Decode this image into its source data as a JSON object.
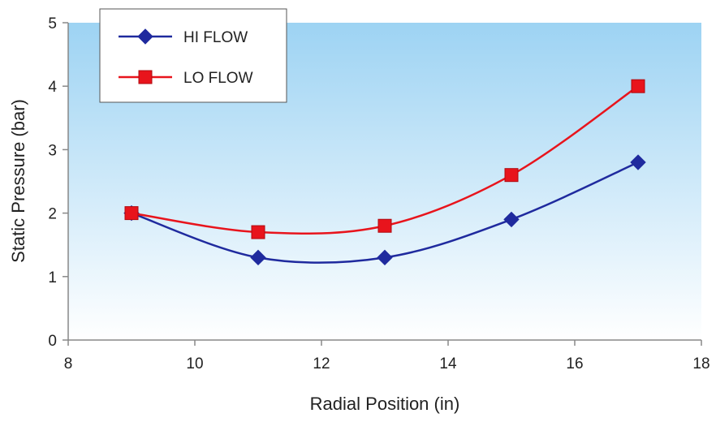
{
  "chart_data": {
    "type": "line",
    "title": "",
    "xlabel": "Radial Position (in)",
    "ylabel": "Static Pressure (bar)",
    "xlim": [
      8,
      18
    ],
    "ylim": [
      0,
      5
    ],
    "x_ticks": [
      "8",
      "10",
      "12",
      "14",
      "16",
      "18"
    ],
    "y_ticks": [
      "0",
      "1",
      "2",
      "3",
      "4",
      "5"
    ],
    "grid": false,
    "legend_position": "top-left",
    "smooth": true,
    "plot_background": {
      "top": "#9dd3f3",
      "bottom": "#ffffff"
    },
    "series": [
      {
        "name": "HI FLOW",
        "color": "#1f2a9e",
        "marker": "diamond",
        "x": [
          9,
          11,
          13,
          15,
          17
        ],
        "y": [
          2.0,
          1.3,
          1.3,
          1.9,
          2.8
        ]
      },
      {
        "name": "LO FLOW",
        "color": "#e8141c",
        "marker": "square",
        "x": [
          9,
          11,
          13,
          15,
          17
        ],
        "y": [
          2.0,
          1.7,
          1.8,
          2.6,
          4.0
        ]
      }
    ]
  }
}
